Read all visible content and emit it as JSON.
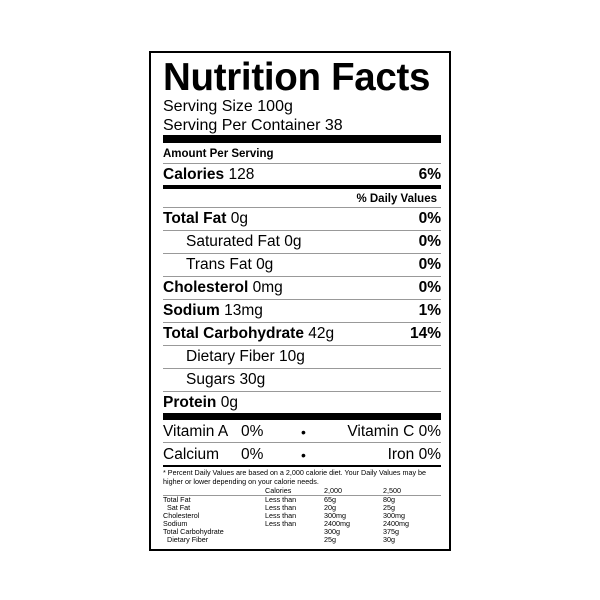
{
  "title": "Nutrition Facts",
  "serving_size": "Serving Size 100g",
  "servings_per_container": "Serving Per Container 38",
  "amount_per_serving": "Amount Per Serving",
  "calories": {
    "label": "Calories",
    "value": "128",
    "percent": "6%"
  },
  "daily_values_header": "% Daily Values",
  "nutrients": [
    {
      "label": "Total Fat",
      "value": "0g",
      "percent": "0%"
    },
    {
      "label": "Saturated Fat",
      "value": "0g",
      "percent": "0%"
    },
    {
      "label": "Trans Fat",
      "value": "0g",
      "percent": "0%"
    },
    {
      "label": "Cholesterol",
      "value": "0mg",
      "percent": "0%"
    },
    {
      "label": "Sodium",
      "value": "13mg",
      "percent": "1%"
    },
    {
      "label": "Total Carbohydrate",
      "value": "42g",
      "percent": "14%"
    },
    {
      "label": "Dietary Fiber",
      "value": "10g"
    },
    {
      "label": "Sugars",
      "value": "30g"
    },
    {
      "label": "Protein",
      "value": "0g"
    }
  ],
  "vitamins": [
    {
      "left_label": "Vitamin A",
      "left_value": "0%",
      "right": "Vitamin C 0%"
    },
    {
      "left_label": "Calcium",
      "left_value": "0%",
      "right": "Iron 0%"
    }
  ],
  "separator": "•",
  "footnote": "* Percent Daily Values are based on a 2,000 calorie diet. Your Daily Values may be higher or lower depending on your calorie needs.",
  "reference_table": {
    "header": [
      "",
      "Calories",
      "2,000",
      "2,500"
    ],
    "rows": [
      [
        "Total Fat",
        "Less than",
        "65g",
        "80g"
      ],
      [
        "Sat Fat",
        "Less than",
        "20g",
        "25g"
      ],
      [
        "Cholesterol",
        "Less than",
        "300mg",
        "300mg"
      ],
      [
        "Sodium",
        "Less than",
        "2400mg",
        "2400mg"
      ],
      [
        "Total Carbohydrate",
        "",
        "300g",
        "375g"
      ],
      [
        "Dietary Fiber",
        "",
        "25g",
        "30g"
      ]
    ]
  }
}
